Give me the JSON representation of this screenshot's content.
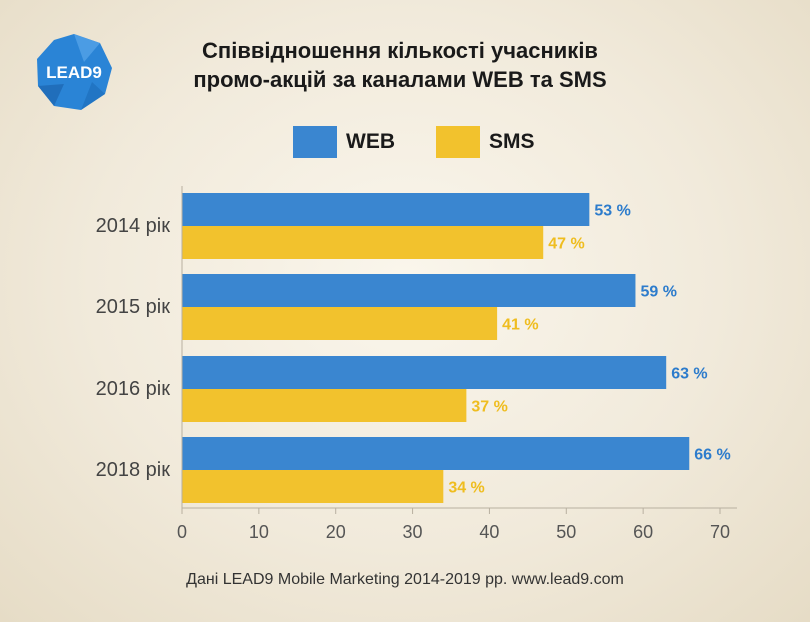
{
  "title_line1": "Співвідношення кількості учасників",
  "title_line2": "промо-акцій за каналами WEB та SMS",
  "logo_text": "LEAD9",
  "source": "Дані LEAD9 Mobile Marketing 2014-2019 pp. www.lead9.com",
  "colors": {
    "web": "#3a86d0",
    "sms": "#f2c22d",
    "web_label": "#2d7ccc",
    "sms_label": "#efbd1f",
    "logo": "#2a84d6"
  },
  "chart_data": {
    "type": "bar",
    "orientation": "horizontal",
    "categories": [
      "2014 рік",
      "2015 рік",
      "2016 рік",
      "2018 рік"
    ],
    "series": [
      {
        "name": "WEB",
        "values": [
          53,
          59,
          63,
          66
        ],
        "labels": [
          "53 %",
          "59 %",
          "63 %",
          "66 %"
        ]
      },
      {
        "name": "SMS",
        "values": [
          47,
          41,
          37,
          34
        ],
        "labels": [
          "47 %",
          "41 %",
          "37 %",
          "34 %"
        ]
      }
    ],
    "xlim": [
      0,
      70
    ],
    "xticks": [
      0,
      10,
      20,
      30,
      40,
      50,
      60,
      70
    ],
    "legend": "top-center",
    "grid": false
  }
}
